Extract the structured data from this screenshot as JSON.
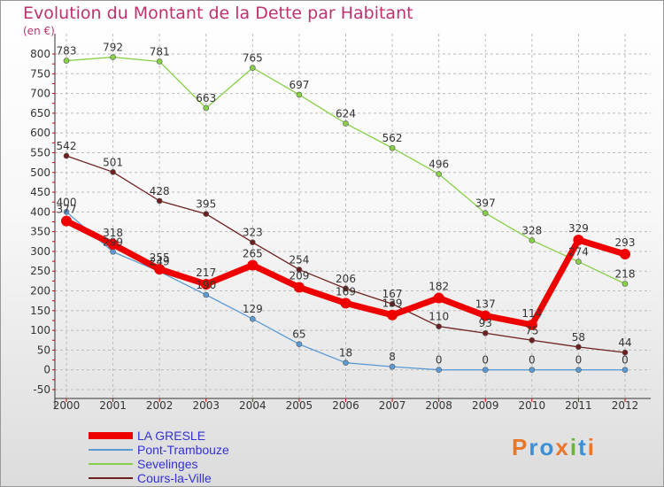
{
  "header": {
    "title": "Evolution du Montant de la Dette par Habitant",
    "unit": "(en €)"
  },
  "colors": {
    "title": "#c0306e",
    "legend_text": "#3333cc",
    "grid": "#bbbbbb",
    "axis_text": "#333333"
  },
  "logo": {
    "text": "Proxiti",
    "colors": [
      "#e8762b",
      "#3a8fd6",
      "#3a8fd6",
      "#e8762b",
      "#6cb33f",
      "#3a8fd6",
      "#e8762b"
    ]
  },
  "chart_data": {
    "type": "line",
    "title": "Evolution du Montant de la Dette par Habitant",
    "ylabel": "(en €)",
    "xlabel": "",
    "x": [
      "2000",
      "2001",
      "2002",
      "2003",
      "2004",
      "2005",
      "2006",
      "2007",
      "2008",
      "2009",
      "2010",
      "2011",
      "2012"
    ],
    "ylim": [
      -50,
      800
    ],
    "yticks": [
      -50,
      0,
      50,
      100,
      150,
      200,
      250,
      300,
      350,
      400,
      450,
      500,
      550,
      600,
      650,
      700,
      750,
      800
    ],
    "grid": true,
    "legend_position": "bottom-left",
    "series": [
      {
        "name": "LA GRESLE",
        "color": "#ee0000",
        "line_width": 7,
        "marker_radius": 6,
        "values": [
          377,
          318,
          255,
          217,
          265,
          209,
          169,
          139,
          182,
          137,
          114,
          329,
          293
        ],
        "labels": [
          "377",
          "318",
          "255",
          "217",
          "265",
          "209",
          "169",
          "139",
          "182",
          "137",
          "114",
          "329",
          "293"
        ]
      },
      {
        "name": "Pont-Trambouze",
        "color": "#5b9bd5",
        "line_width": 1.3,
        "marker_radius": 3,
        "values": [
          400,
          299,
          249,
          190,
          129,
          65,
          18,
          8,
          0,
          0,
          0,
          0,
          0
        ],
        "labels": [
          "400",
          "299",
          "249",
          "190",
          "129",
          "65",
          "18",
          "8",
          "0",
          "0",
          "0",
          "0",
          "0"
        ]
      },
      {
        "name": "Sevelinges",
        "color": "#88d048",
        "line_width": 1.3,
        "marker_radius": 3,
        "values": [
          783,
          792,
          781,
          663,
          765,
          697,
          624,
          562,
          496,
          397,
          328,
          274,
          218
        ],
        "labels": [
          "783",
          "792",
          "781",
          "663",
          "765",
          "697",
          "624",
          "562",
          "496",
          "397",
          "328",
          "274",
          "218"
        ]
      },
      {
        "name": "Cours-la-Ville",
        "color": "#6e2020",
        "line_width": 1.3,
        "marker_radius": 3,
        "values": [
          542,
          501,
          428,
          395,
          323,
          254,
          206,
          167,
          110,
          93,
          75,
          58,
          44
        ],
        "labels": [
          "542",
          "501",
          "428",
          "395",
          "323",
          "254",
          "206",
          "167",
          "110",
          "93",
          "75",
          "58",
          "44"
        ]
      }
    ]
  }
}
